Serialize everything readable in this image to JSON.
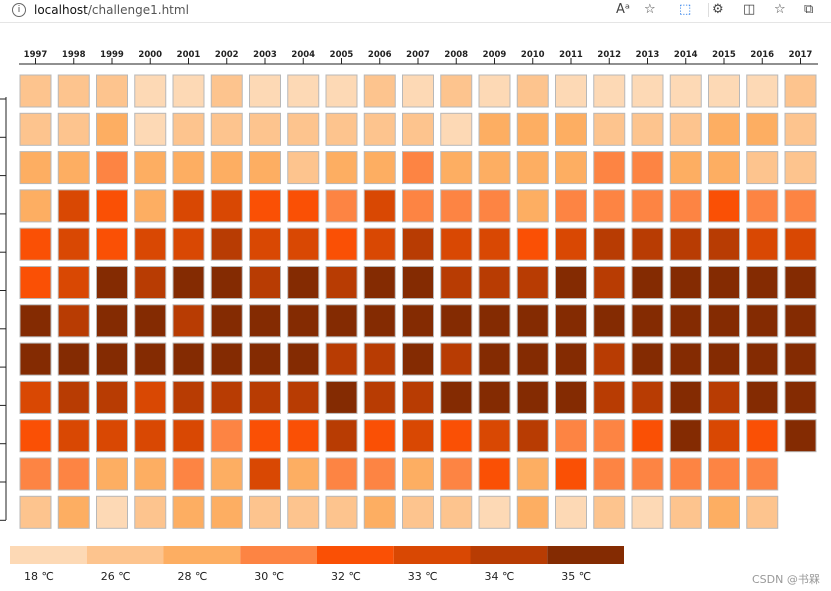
{
  "browser": {
    "url_host": "localhost",
    "url_path": "/challenge1.html",
    "icons": [
      "read-aloud-icon",
      "favorite-add-icon",
      "screenshot-icon",
      "extensions-icon",
      "split-screen-icon",
      "favorites-icon",
      "collections-icon"
    ],
    "accent_color": "#1a73e8"
  },
  "chart_data": {
    "type": "heatmap",
    "title": "",
    "x_labels": [
      "1997",
      "1998",
      "1999",
      "2000",
      "2001",
      "2002",
      "2003",
      "2004",
      "2005",
      "2006",
      "2007",
      "2008",
      "2009",
      "2010",
      "2011",
      "2012",
      "2013",
      "2014",
      "2015",
      "2016",
      "2017"
    ],
    "y_labels": [
      "",
      "",
      "",
      "",
      "",
      "",
      "",
      "",
      "",
      "",
      "",
      ""
    ],
    "levels": [
      {
        "label": "18 ℃",
        "color": "#fdd9b5"
      },
      {
        "label": "26 ℃",
        "color": "#fdc48e"
      },
      {
        "label": "28 ℃",
        "color": "#fdae62"
      },
      {
        "label": "30 ℃",
        "color": "#fd8443"
      },
      {
        "label": "32 ℃",
        "color": "#fa5005"
      },
      {
        "label": "33 ℃",
        "color": "#d94803"
      },
      {
        "label": "34 ℃",
        "color": "#b83c03"
      },
      {
        "label": "35 ℃",
        "color": "#842b02"
      }
    ],
    "matrix_level_index": [
      [
        1,
        1,
        1,
        0,
        0,
        1,
        0,
        0,
        0,
        1,
        0,
        1,
        0,
        1,
        0,
        0,
        0,
        0,
        0,
        0,
        1
      ],
      [
        1,
        1,
        2,
        0,
        1,
        1,
        1,
        1,
        1,
        1,
        1,
        0,
        2,
        2,
        2,
        1,
        1,
        1,
        2,
        2,
        1
      ],
      [
        2,
        2,
        3,
        2,
        2,
        2,
        2,
        1,
        2,
        2,
        3,
        2,
        2,
        2,
        2,
        3,
        3,
        2,
        2,
        1,
        1
      ],
      [
        2,
        5,
        4,
        2,
        5,
        5,
        4,
        4,
        3,
        5,
        3,
        3,
        3,
        2,
        3,
        3,
        3,
        3,
        4,
        3,
        3
      ],
      [
        4,
        5,
        4,
        5,
        5,
        6,
        5,
        5,
        4,
        5,
        6,
        5,
        5,
        4,
        5,
        6,
        6,
        6,
        6,
        5,
        5
      ],
      [
        4,
        5,
        7,
        6,
        7,
        7,
        6,
        7,
        6,
        7,
        7,
        6,
        6,
        6,
        7,
        6,
        7,
        7,
        7,
        7,
        7
      ],
      [
        7,
        6,
        7,
        7,
        6,
        7,
        7,
        7,
        7,
        7,
        7,
        7,
        7,
        7,
        7,
        7,
        7,
        7,
        7,
        7,
        7
      ],
      [
        7,
        7,
        7,
        7,
        7,
        7,
        7,
        7,
        6,
        6,
        7,
        6,
        7,
        7,
        7,
        6,
        7,
        7,
        7,
        7,
        7
      ],
      [
        5,
        6,
        6,
        5,
        6,
        6,
        6,
        6,
        7,
        6,
        6,
        7,
        7,
        7,
        7,
        6,
        6,
        7,
        6,
        7,
        7
      ],
      [
        4,
        5,
        5,
        5,
        5,
        3,
        4,
        4,
        6,
        4,
        5,
        4,
        5,
        6,
        3,
        3,
        4,
        7,
        5,
        4,
        7
      ],
      [
        3,
        3,
        2,
        2,
        3,
        2,
        5,
        2,
        3,
        3,
        2,
        3,
        4,
        2,
        4,
        3,
        3,
        3,
        3,
        3,
        null
      ],
      [
        1,
        2,
        0,
        1,
        2,
        2,
        1,
        1,
        1,
        2,
        1,
        1,
        0,
        2,
        0,
        1,
        0,
        1,
        2,
        1,
        null
      ]
    ],
    "grid": false,
    "legend_position": "bottom-left"
  },
  "watermark": "CSDN @书槑"
}
